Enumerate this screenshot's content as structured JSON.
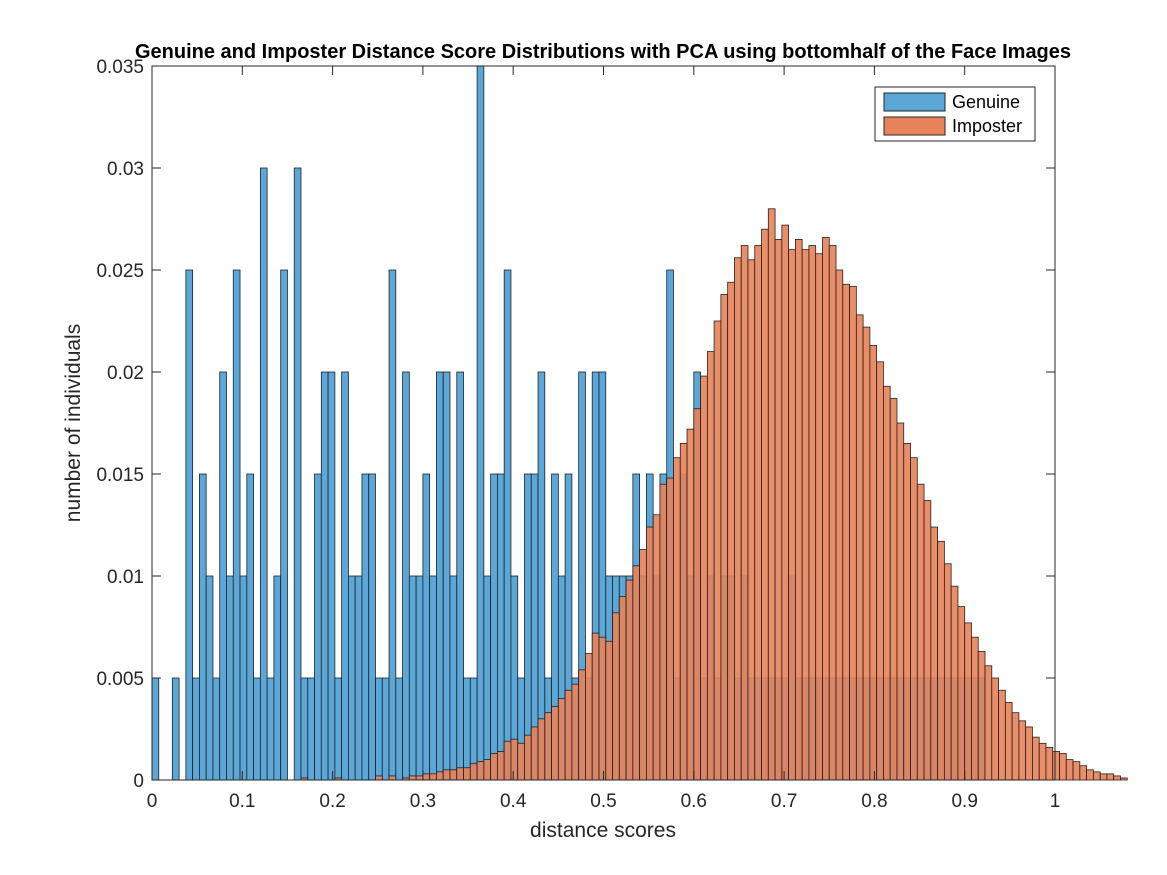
{
  "chart_data": {
    "type": "bar",
    "title": "Genuine and Imposter Distance Score Distributions with PCA using bottomhalf of the Face Images",
    "xlabel": "distance scores",
    "ylabel": "number of individuals",
    "xlim": [
      0,
      1
    ],
    "ylim": [
      0,
      0.035
    ],
    "xticks": [
      "0",
      "0.1",
      "0.2",
      "0.3",
      "0.4",
      "0.5",
      "0.6",
      "0.7",
      "0.8",
      "0.9",
      "1"
    ],
    "yticks": [
      "0",
      "0.005",
      "0.01",
      "0.015",
      "0.02",
      "0.025",
      "0.03",
      "0.035"
    ],
    "grid": false,
    "legend_position": "top-right",
    "series": [
      {
        "name": "Genuine",
        "color": "#5ba7d8",
        "bin_start": 0.0,
        "bin_width": 0.0075,
        "values": [
          0.005,
          0,
          0,
          0.005,
          0,
          0.025,
          0.005,
          0.015,
          0.01,
          0.005,
          0.02,
          0.01,
          0.025,
          0.01,
          0.015,
          0.005,
          0.03,
          0.005,
          0.01,
          0.025,
          0,
          0.03,
          0.005,
          0.005,
          0.015,
          0.02,
          0.02,
          0.005,
          0.02,
          0.01,
          0.01,
          0.015,
          0.015,
          0.005,
          0.005,
          0.025,
          0.005,
          0.02,
          0.01,
          0.01,
          0.015,
          0.01,
          0.02,
          0.02,
          0.01,
          0.02,
          0.005,
          0.005,
          0.035,
          0.01,
          0.015,
          0.015,
          0.025,
          0.01,
          0.005,
          0.015,
          0.015,
          0.02,
          0.005,
          0.015,
          0.01,
          0.015,
          0.005,
          0.02,
          0.005,
          0.02,
          0.02,
          0.01,
          0.01,
          0.01,
          0.01,
          0.015,
          0.01,
          0.015,
          0.01,
          0.015,
          0.025,
          0.005,
          0.015,
          0.01,
          0.02,
          0.005,
          0.01,
          0.005,
          0.01,
          0.01,
          0.005,
          0.01,
          0.005,
          0.005,
          0.005,
          0.005,
          0.005,
          0.005,
          0.01,
          0.005,
          0.005,
          0.005,
          0.005,
          0.005,
          0.005,
          0.005,
          0.005,
          0.005,
          0.005,
          0.005,
          0.005,
          0.005,
          0.005,
          0.005,
          0.005,
          0.005,
          0.005,
          0.005,
          0.005,
          0.005,
          0.005,
          0.005,
          0.005,
          0.005,
          0.005,
          0.005,
          0.005,
          0,
          0,
          0,
          0,
          0,
          0,
          0,
          0,
          0,
          0
        ]
      },
      {
        "name": "Imposter",
        "color": "#e8825a",
        "bin_start": 0.0,
        "bin_width": 0.0075,
        "values": [
          0,
          0,
          0,
          0,
          0,
          0,
          0,
          0,
          0,
          0,
          0,
          0,
          0,
          0,
          0,
          0,
          0,
          0,
          0,
          0,
          0,
          0,
          0.0001,
          0,
          0,
          0,
          0,
          0.0001,
          0,
          0,
          0,
          0,
          0,
          0.0002,
          0,
          0.0002,
          0,
          0.0001,
          0.0002,
          0.0002,
          0.0003,
          0.0003,
          0.0004,
          0.0005,
          0.0005,
          0.0006,
          0.0006,
          0.0008,
          0.0009,
          0.001,
          0.0013,
          0.0014,
          0.0019,
          0.002,
          0.0018,
          0.0022,
          0.0026,
          0.003,
          0.0033,
          0.0036,
          0.004,
          0.0044,
          0.0047,
          0.0054,
          0.0062,
          0.0072,
          0.007,
          0.0068,
          0.0082,
          0.009,
          0.0098,
          0.0105,
          0.0113,
          0.0124,
          0.013,
          0.0145,
          0.0148,
          0.0158,
          0.0165,
          0.0172,
          0.0182,
          0.0198,
          0.021,
          0.0225,
          0.0238,
          0.0244,
          0.0256,
          0.0262,
          0.0255,
          0.0262,
          0.027,
          0.028,
          0.0265,
          0.0272,
          0.026,
          0.0265,
          0.026,
          0.0262,
          0.0258,
          0.0266,
          0.0262,
          0.025,
          0.0243,
          0.0242,
          0.0228,
          0.0222,
          0.0213,
          0.0205,
          0.0193,
          0.0187,
          0.0175,
          0.0165,
          0.0158,
          0.0145,
          0.0137,
          0.0124,
          0.0117,
          0.0106,
          0.0095,
          0.0085,
          0.0077,
          0.007,
          0.0063,
          0.0056,
          0.005,
          0.0044,
          0.0038,
          0.0033,
          0.0029,
          0.0026,
          0.0021,
          0.0018,
          0.0016,
          0.0014,
          0.0013,
          0.001,
          0.0009,
          0.0007,
          0.0005,
          0.0004,
          0.0003,
          0.0003,
          0.0002,
          0.0001
        ]
      }
    ]
  }
}
